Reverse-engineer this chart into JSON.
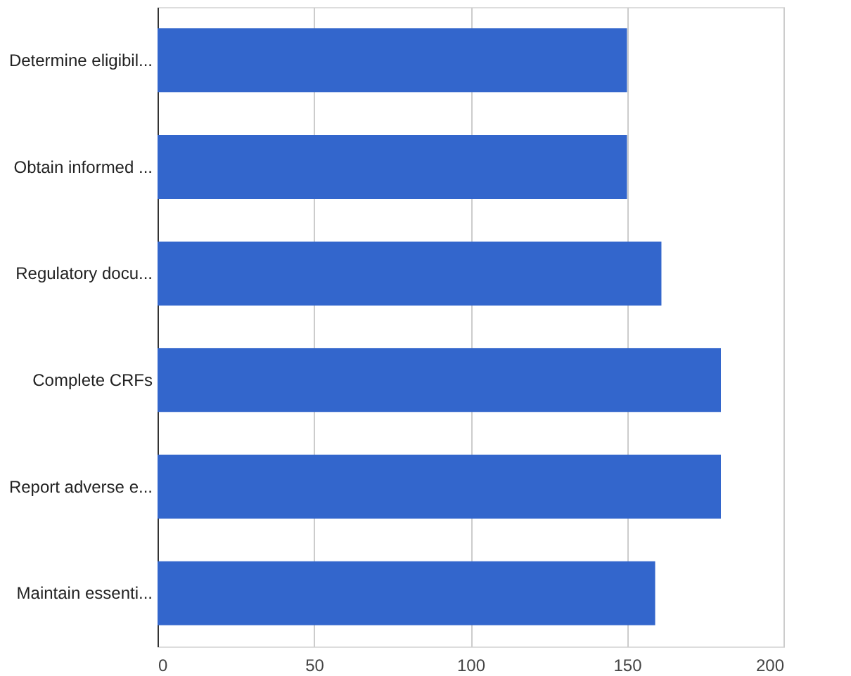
{
  "chart_data": {
    "type": "bar",
    "orientation": "horizontal",
    "categories": [
      "Determine eligibil...",
      "Obtain informed ...",
      "Regulatory docu...",
      "Complete CRFs",
      "Report adverse e...",
      "Maintain essenti..."
    ],
    "values": [
      150,
      150,
      161,
      180,
      180,
      159
    ],
    "color": "#3366cc",
    "xlim": [
      0,
      200
    ],
    "xticks": [
      0,
      50,
      100,
      150,
      200
    ],
    "grid": "x"
  }
}
